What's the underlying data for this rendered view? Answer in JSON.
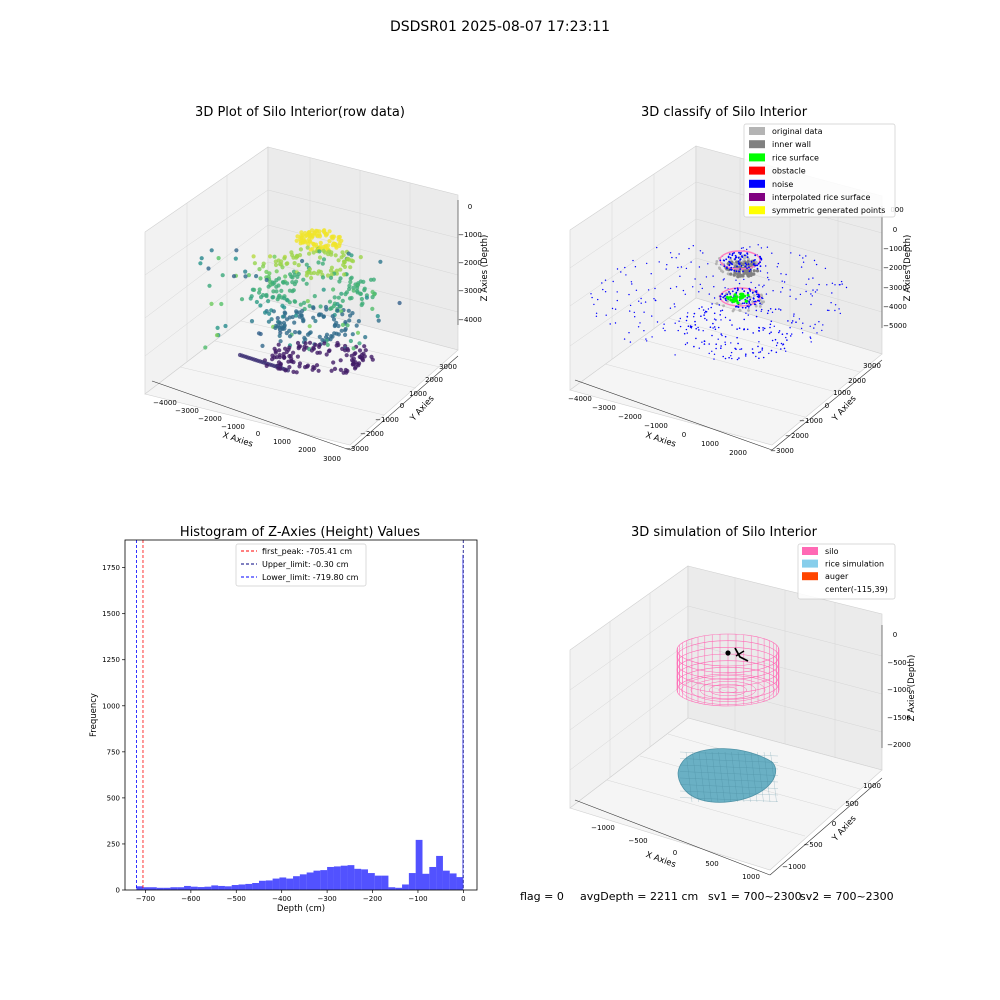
{
  "figure": {
    "suptitle": "DSDSR01 2025-08-07 17:23:11"
  },
  "panels": {
    "raw": {
      "title": "3D Plot of Silo Interior(row data)",
      "xlabel": "X Axies",
      "ylabel": "Y Axies",
      "zlabel": "Z Axies (Depth)",
      "xticks": [
        "−4000",
        "−3000",
        "−2000",
        "−1000",
        "0",
        "1000",
        "2000",
        "3000"
      ],
      "yticks": [
        "3000",
        "2000",
        "1000",
        "0",
        "−1000",
        "−2000",
        "−3000"
      ],
      "zticks": [
        "0",
        "−1000",
        "−2000",
        "−3000",
        "−4000"
      ]
    },
    "classify": {
      "title": "3D classify of Silo Interior",
      "xlabel": "X Axies",
      "ylabel": "Y Axies",
      "zlabel": "Z Axies (Depth)",
      "xticks": [
        "−4000",
        "−3000",
        "−2000",
        "−1000",
        "0",
        "1000",
        "2000"
      ],
      "yticks": [
        "3000",
        "2000",
        "1000",
        "0",
        "−1000",
        "−2000",
        "−3000"
      ],
      "zticks": [
        "000",
        "0",
        "−1000",
        "−2000",
        "−3000",
        "−4000",
        "−5000"
      ],
      "legend": [
        {
          "label": "original data",
          "color": "#b4b4b4"
        },
        {
          "label": "inner wall",
          "color": "#808080"
        },
        {
          "label": "rice surface",
          "color": "#00ff00"
        },
        {
          "label": "obstacle",
          "color": "#ff0000"
        },
        {
          "label": "noise",
          "color": "#0000ff"
        },
        {
          "label": "interpolated rice surface",
          "color": "#800080"
        },
        {
          "label": "symmetric generated points",
          "color": "#ffff00"
        }
      ]
    },
    "simulation": {
      "title": "3D simulation of Silo Interior",
      "xlabel": "X Axies",
      "ylabel": "Y Axies",
      "zlabel": "Z Axies (Depth)",
      "xticks": [
        "−1000",
        "−500",
        "0",
        "500",
        "1000"
      ],
      "yticks": [
        "1000",
        "500",
        "0",
        "−500",
        "−1000"
      ],
      "zticks": [
        "0",
        "−500",
        "−1000",
        "−1500",
        "−2000"
      ],
      "legend": [
        {
          "label": "silo",
          "color": "#ff69b4"
        },
        {
          "label": "rice simulation",
          "color": "#87ceeb"
        },
        {
          "label": "auger",
          "color": "#ff4500"
        },
        {
          "label": "center(-115,39)",
          "color": ""
        }
      ]
    }
  },
  "status": {
    "flag": "flag = 0",
    "avg": "avgDepth = 2211 cm",
    "sv1": "sv1 = 700~2300",
    "sv2": "sv2 = 700~2300"
  },
  "chart_data": [
    {
      "type": "scatter",
      "title": "3D Plot of Silo Interior(row data)",
      "xlabel": "X Axies",
      "ylabel": "Y Axies",
      "zlabel": "Z Axies (Depth)",
      "xlim": [
        -4300,
        3100
      ],
      "ylim": [
        -3100,
        3300
      ],
      "zlim": [
        -4800,
        100
      ],
      "colormap": "viridis by depth"
    },
    {
      "type": "scatter",
      "title": "3D classify of Silo Interior",
      "xlabel": "X Axies",
      "ylabel": "Y Axies",
      "zlabel": "Z Axies (Depth)",
      "xlim": [
        -4300,
        2500
      ],
      "ylim": [
        -3100,
        3300
      ],
      "zlim": [
        -5800,
        1000
      ],
      "legend_position": "top-right"
    },
    {
      "type": "bar",
      "title": "Histogram of Z-Axies (Height) Values",
      "xlabel": "Depth (cm)",
      "ylabel": "Frequency",
      "xlim": [
        -745,
        30
      ],
      "ylim": [
        0,
        1900
      ],
      "xticks": [
        -700,
        -600,
        -500,
        -400,
        -300,
        -200,
        -100,
        0
      ],
      "yticks": [
        0,
        250,
        500,
        750,
        1000,
        1250,
        1500,
        1750
      ],
      "bar_color": "#0000ff",
      "bins": [
        {
          "x0": -720,
          "x1": -705,
          "count": 20
        },
        {
          "x0": -705,
          "x1": -690,
          "count": 15
        },
        {
          "x0": -690,
          "x1": -675,
          "count": 15
        },
        {
          "x0": -675,
          "x1": -660,
          "count": 12
        },
        {
          "x0": -660,
          "x1": -645,
          "count": 12
        },
        {
          "x0": -645,
          "x1": -630,
          "count": 15
        },
        {
          "x0": -630,
          "x1": -615,
          "count": 15
        },
        {
          "x0": -615,
          "x1": -600,
          "count": 22
        },
        {
          "x0": -600,
          "x1": -585,
          "count": 18
        },
        {
          "x0": -585,
          "x1": -570,
          "count": 16
        },
        {
          "x0": -570,
          "x1": -555,
          "count": 18
        },
        {
          "x0": -555,
          "x1": -540,
          "count": 25
        },
        {
          "x0": -540,
          "x1": -525,
          "count": 22
        },
        {
          "x0": -525,
          "x1": -510,
          "count": 20
        },
        {
          "x0": -510,
          "x1": -495,
          "count": 27
        },
        {
          "x0": -495,
          "x1": -480,
          "count": 30
        },
        {
          "x0": -480,
          "x1": -465,
          "count": 33
        },
        {
          "x0": -465,
          "x1": -450,
          "count": 38
        },
        {
          "x0": -450,
          "x1": -435,
          "count": 50
        },
        {
          "x0": -435,
          "x1": -420,
          "count": 52
        },
        {
          "x0": -420,
          "x1": -405,
          "count": 62
        },
        {
          "x0": -405,
          "x1": -390,
          "count": 68
        },
        {
          "x0": -390,
          "x1": -375,
          "count": 62
        },
        {
          "x0": -375,
          "x1": -360,
          "count": 75
        },
        {
          "x0": -360,
          "x1": -345,
          "count": 85
        },
        {
          "x0": -345,
          "x1": -330,
          "count": 95
        },
        {
          "x0": -330,
          "x1": -315,
          "count": 105
        },
        {
          "x0": -315,
          "x1": -300,
          "count": 108
        },
        {
          "x0": -300,
          "x1": -285,
          "count": 125
        },
        {
          "x0": -285,
          "x1": -270,
          "count": 128
        },
        {
          "x0": -270,
          "x1": -255,
          "count": 132
        },
        {
          "x0": -255,
          "x1": -240,
          "count": 135
        },
        {
          "x0": -240,
          "x1": -225,
          "count": 115
        },
        {
          "x0": -225,
          "x1": -210,
          "count": 112
        },
        {
          "x0": -210,
          "x1": -195,
          "count": 92
        },
        {
          "x0": -195,
          "x1": -180,
          "count": 78
        },
        {
          "x0": -180,
          "x1": -165,
          "count": 78
        },
        {
          "x0": -165,
          "x1": -150,
          "count": 15
        },
        {
          "x0": -150,
          "x1": -135,
          "count": 12
        },
        {
          "x0": -135,
          "x1": -120,
          "count": 30
        },
        {
          "x0": -120,
          "x1": -105,
          "count": 92
        },
        {
          "x0": -105,
          "x1": -90,
          "count": 272
        },
        {
          "x0": -90,
          "x1": -75,
          "count": 88
        },
        {
          "x0": -75,
          "x1": -60,
          "count": 125
        },
        {
          "x0": -60,
          "x1": -45,
          "count": 185
        },
        {
          "x0": -45,
          "x1": -30,
          "count": 105
        },
        {
          "x0": -30,
          "x1": -15,
          "count": 90
        },
        {
          "x0": -15,
          "x1": -2,
          "count": 70
        },
        {
          "x0": -2,
          "x1": 0,
          "count": 1820
        }
      ],
      "vlines": [
        {
          "x": -705.41,
          "color": "#ff0000",
          "style": "dashed",
          "label": "first_peak: -705.41 cm"
        },
        {
          "x": -0.3,
          "color": "#000080",
          "style": "dashed",
          "label": "Upper_limit: -0.30 cm"
        },
        {
          "x": -719.8,
          "color": "#0000ff",
          "style": "dashed",
          "label": "Lower_limit: -719.80 cm"
        }
      ],
      "legend_position": "top-center"
    },
    {
      "type": "scatter",
      "title": "3D simulation of Silo Interior",
      "xlabel": "X Axies",
      "ylabel": "Y Axies",
      "zlabel": "Z Axies (Depth)",
      "xlim": [
        -1300,
        1100
      ],
      "ylim": [
        -1200,
        1200
      ],
      "zlim": [
        -2300,
        200
      ],
      "legend_position": "top-right"
    }
  ]
}
